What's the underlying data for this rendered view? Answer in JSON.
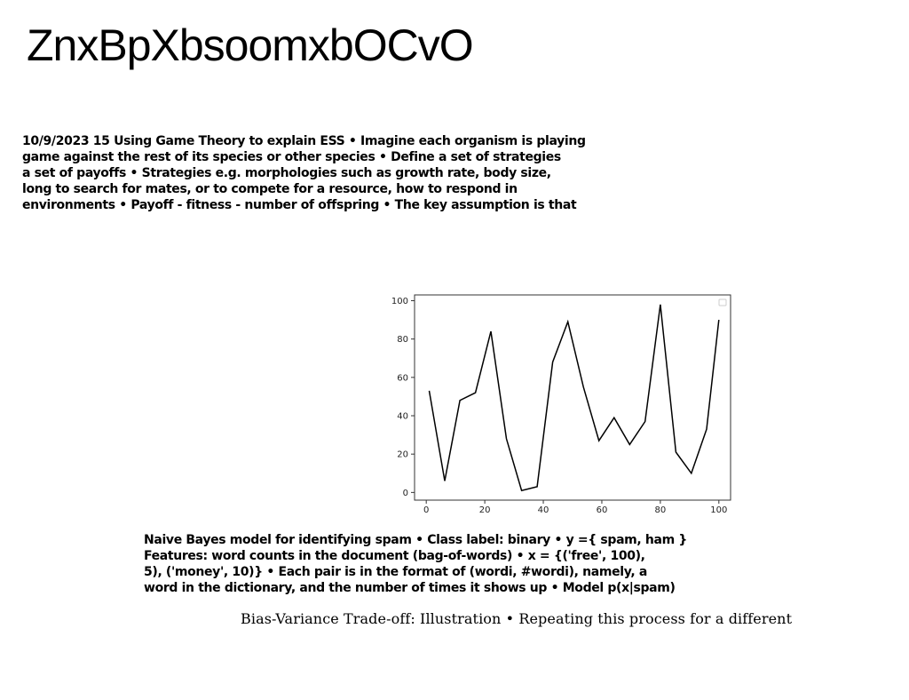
{
  "title": "ZnxBpXbsoomxbOCvO",
  "paragraph1": {
    "lines": [
      "10/9/2023 15 Using Game Theory to explain ESS • Imagine each organism is playing",
      "game against the rest of its species or other species • Define a set of strategies",
      "a set of payoffs • Strategies e.g. morphologies such as growth rate, body size,",
      "long to search for mates, or to compete for a resource, how to respond in",
      "environments • Payoff - fitness - number of offspring • The key assumption is that"
    ]
  },
  "chart_data": {
    "type": "line",
    "title": "",
    "xlabel": "",
    "ylabel": "",
    "xlim": [
      -4,
      104
    ],
    "ylim": [
      -4,
      103
    ],
    "xticks": [
      0,
      20,
      40,
      60,
      80,
      100
    ],
    "yticks": [
      0,
      20,
      40,
      60,
      80,
      100
    ],
    "grid": false,
    "legend": "top-right (empty)",
    "line_color": "#000000",
    "series": [
      {
        "x": [
          1,
          6.3,
          11.5,
          16.8,
          22.1,
          27.4,
          32.6,
          37.9,
          43.2,
          48.4,
          53.7,
          59,
          64.2,
          69.5,
          74.8,
          80,
          85.3,
          90.6,
          95.8,
          100
        ],
        "values": [
          53,
          6,
          48,
          52,
          84,
          28,
          1,
          3,
          68,
          89,
          55,
          27,
          39,
          25,
          37,
          98,
          21,
          10,
          33,
          90
        ]
      }
    ]
  },
  "paragraph2": {
    "lines": [
      "Naive Bayes model for identifying spam • Class label: binary • y ={ spam, ham }",
      "Features: word counts in the document (bag-of-words) • x = {('free', 100),",
      "5), ('money', 10)} • Each pair is in the format of (wordi, #wordi), namely, a",
      "word in the dictionary, and the number of times it shows up • Model p(x|spam)"
    ]
  },
  "footer_text": "Bias-Variance Trade-off: Illustration • Repeating this process for a different"
}
